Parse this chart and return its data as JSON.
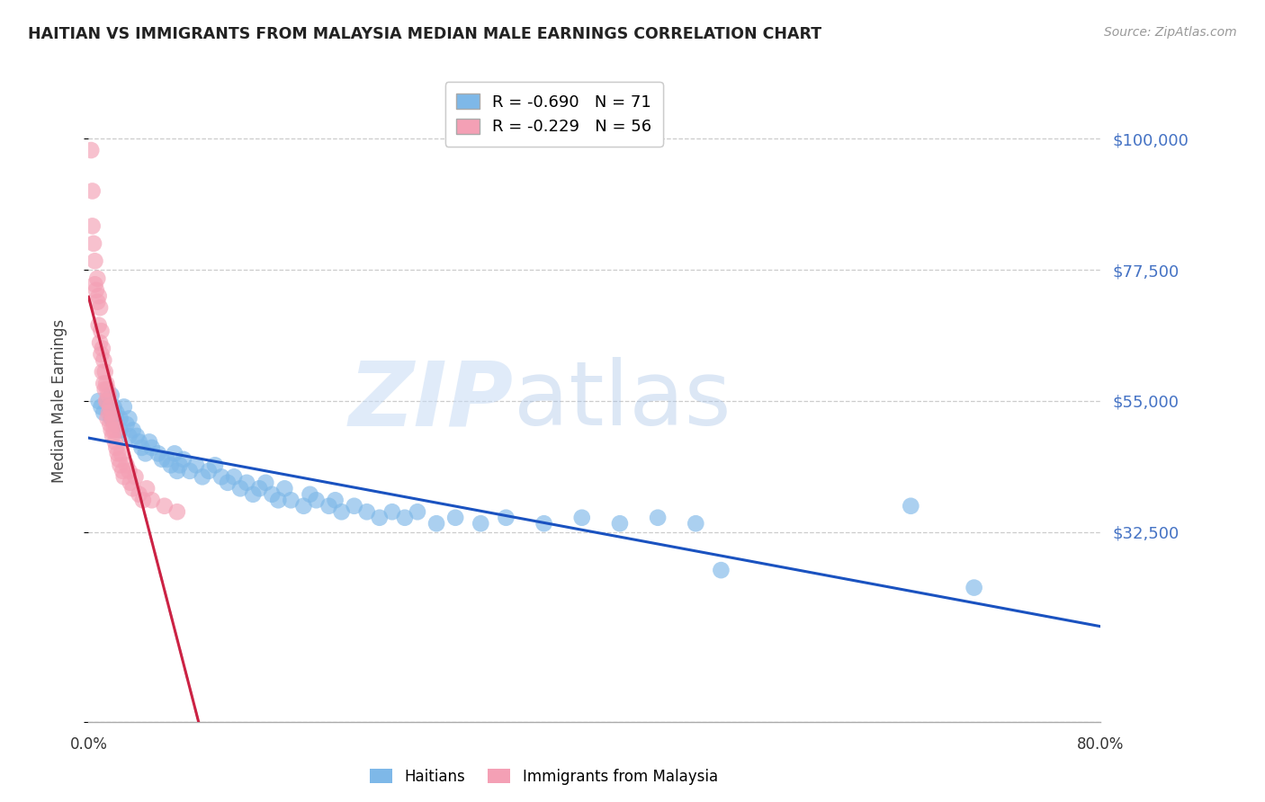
{
  "title": "HAITIAN VS IMMIGRANTS FROM MALAYSIA MEDIAN MALE EARNINGS CORRELATION CHART",
  "source": "Source: ZipAtlas.com",
  "ylabel": "Median Male Earnings",
  "xmin": 0.0,
  "xmax": 0.8,
  "ymin": 0,
  "ymax": 110000,
  "ytick_vals": [
    0,
    32500,
    55000,
    77500,
    100000
  ],
  "ytick_labels_right": [
    "",
    "$32,500",
    "$55,000",
    "$77,500",
    "$100,000"
  ],
  "haitians_R": -0.69,
  "haitians_N": 71,
  "malaysia_R": -0.229,
  "malaysia_N": 56,
  "haitians_color": "#7EB8E8",
  "malaysia_color": "#F4A0B5",
  "haitians_line_color": "#1A52C0",
  "malaysia_line_color": "#CC2244",
  "grid_color": "#CCCCCC",
  "right_label_color": "#4472C4",
  "haitians_x": [
    0.008,
    0.01,
    0.012,
    0.015,
    0.018,
    0.018,
    0.02,
    0.022,
    0.022,
    0.025,
    0.025,
    0.028,
    0.03,
    0.032,
    0.032,
    0.035,
    0.038,
    0.04,
    0.042,
    0.045,
    0.048,
    0.05,
    0.055,
    0.058,
    0.062,
    0.065,
    0.068,
    0.07,
    0.072,
    0.075,
    0.08,
    0.085,
    0.09,
    0.095,
    0.1,
    0.105,
    0.11,
    0.115,
    0.12,
    0.125,
    0.13,
    0.135,
    0.14,
    0.145,
    0.15,
    0.155,
    0.16,
    0.17,
    0.175,
    0.18,
    0.19,
    0.195,
    0.2,
    0.21,
    0.22,
    0.23,
    0.24,
    0.25,
    0.26,
    0.275,
    0.29,
    0.31,
    0.33,
    0.36,
    0.39,
    0.42,
    0.45,
    0.48,
    0.5,
    0.65,
    0.7
  ],
  "haitians_y": [
    55000,
    54000,
    53000,
    55000,
    52000,
    56000,
    54000,
    51000,
    53000,
    52000,
    50000,
    54000,
    51000,
    49000,
    52000,
    50000,
    49000,
    48000,
    47000,
    46000,
    48000,
    47000,
    46000,
    45000,
    45000,
    44000,
    46000,
    43000,
    44000,
    45000,
    43000,
    44000,
    42000,
    43000,
    44000,
    42000,
    41000,
    42000,
    40000,
    41000,
    39000,
    40000,
    41000,
    39000,
    38000,
    40000,
    38000,
    37000,
    39000,
    38000,
    37000,
    38000,
    36000,
    37000,
    36000,
    35000,
    36000,
    35000,
    36000,
    34000,
    35000,
    34000,
    35000,
    34000,
    35000,
    34000,
    35000,
    34000,
    26000,
    37000,
    23000
  ],
  "malaysia_x": [
    0.002,
    0.003,
    0.003,
    0.004,
    0.005,
    0.005,
    0.006,
    0.007,
    0.007,
    0.008,
    0.008,
    0.009,
    0.009,
    0.01,
    0.01,
    0.011,
    0.011,
    0.012,
    0.012,
    0.013,
    0.013,
    0.014,
    0.014,
    0.015,
    0.015,
    0.015,
    0.016,
    0.016,
    0.017,
    0.017,
    0.018,
    0.018,
    0.019,
    0.019,
    0.02,
    0.021,
    0.021,
    0.022,
    0.022,
    0.023,
    0.024,
    0.025,
    0.026,
    0.027,
    0.028,
    0.03,
    0.032,
    0.033,
    0.035,
    0.037,
    0.04,
    0.043,
    0.046,
    0.05,
    0.06,
    0.07
  ],
  "malaysia_y": [
    98000,
    91000,
    85000,
    82000,
    79000,
    75000,
    74000,
    72000,
    76000,
    73000,
    68000,
    71000,
    65000,
    63000,
    67000,
    60000,
    64000,
    58000,
    62000,
    57000,
    60000,
    55000,
    58000,
    55000,
    57000,
    52000,
    53000,
    56000,
    51000,
    54000,
    50000,
    53000,
    49000,
    52000,
    50000,
    48000,
    51000,
    47000,
    50000,
    46000,
    45000,
    44000,
    46000,
    43000,
    42000,
    44000,
    43000,
    41000,
    40000,
    42000,
    39000,
    38000,
    40000,
    38000,
    37000,
    36000
  ]
}
